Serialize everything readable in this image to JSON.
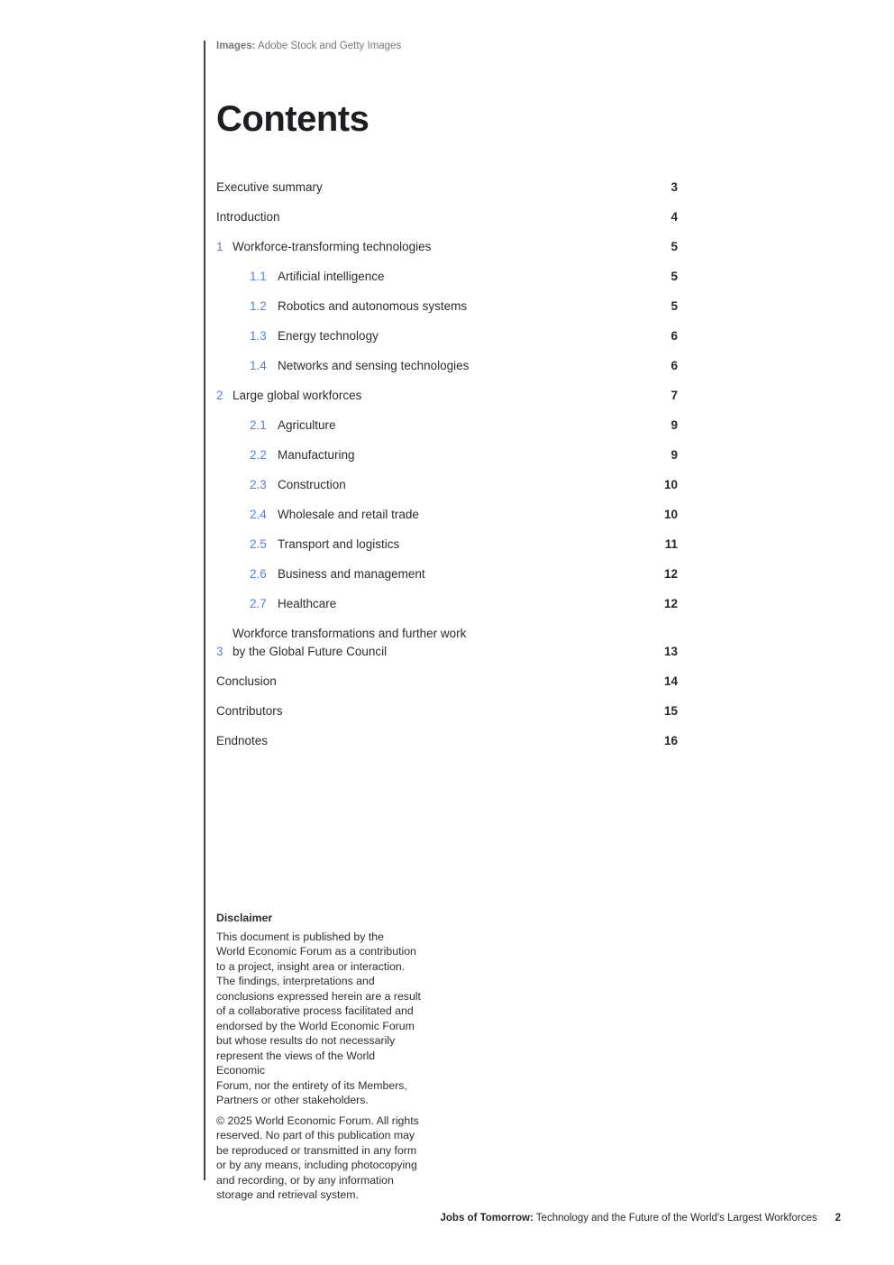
{
  "credits": {
    "label": "Images:",
    "text": "Adobe Stock and Getty Images"
  },
  "title": "Contents",
  "toc": {
    "entries": [
      {
        "level": 0,
        "number": "",
        "label": "Executive summary",
        "page": "3"
      },
      {
        "level": 0,
        "number": "",
        "label": "Introduction",
        "page": "4"
      },
      {
        "level": 1,
        "number": "1",
        "label": "Workforce-transforming technologies",
        "page": "5"
      },
      {
        "level": 2,
        "number": "1.1",
        "label": "Artificial intelligence",
        "page": "5"
      },
      {
        "level": 2,
        "number": "1.2",
        "label": "Robotics and autonomous systems",
        "page": "5"
      },
      {
        "level": 2,
        "number": "1.3",
        "label": "Energy technology",
        "page": "6"
      },
      {
        "level": 2,
        "number": "1.4",
        "label": "Networks and sensing technologies",
        "page": "6"
      },
      {
        "level": 1,
        "number": "2",
        "label": "Large global workforces",
        "page": "7"
      },
      {
        "level": 2,
        "number": "2.1",
        "label": "Agriculture",
        "page": "9"
      },
      {
        "level": 2,
        "number": "2.2",
        "label": "Manufacturing",
        "page": "9"
      },
      {
        "level": 2,
        "number": "2.3",
        "label": "Construction",
        "page": "10"
      },
      {
        "level": 2,
        "number": "2.4",
        "label": "Wholesale and retail trade",
        "page": "10"
      },
      {
        "level": 2,
        "number": "2.5",
        "label": "Transport and logistics",
        "page": "11"
      },
      {
        "level": 2,
        "number": "2.6",
        "label": "Business and management",
        "page": "12"
      },
      {
        "level": 2,
        "number": "2.7",
        "label": "Healthcare",
        "page": "12"
      },
      {
        "level": 1,
        "number": "3",
        "label": "Workforce transformations and further work\nby the Global Future Council",
        "page": "13"
      },
      {
        "level": 0,
        "number": "",
        "label": "Conclusion",
        "page": "14"
      },
      {
        "level": 0,
        "number": "",
        "label": "Contributors",
        "page": "15"
      },
      {
        "level": 0,
        "number": "",
        "label": "Endnotes",
        "page": "16"
      }
    ]
  },
  "disclaimer": {
    "heading": "Disclaimer",
    "paragraph1": "This document is published by the\nWorld Economic Forum as a contribution\nto a project, insight area or interaction.\nThe findings, interpretations and\nconclusions expressed herein are a result\nof a collaborative process facilitated and\nendorsed by the World Economic Forum\nbut whose results do not necessarily\nrepresent the views of the World Economic\nForum, nor the entirety of its Members,\nPartners or other stakeholders.",
    "paragraph2": "© 2025 World Economic Forum. All rights\nreserved. No part of this publication may\nbe reproduced or transmitted in any form\nor by any means, including photocopying\nand recording, or by any information\nstorage and retrieval system."
  },
  "footer": {
    "title_bold": "Jobs of Tomorrow:",
    "title_rest": "Technology and the Future of the World's Largest Workforces",
    "page_number": "2"
  },
  "colors": {
    "accent_blue": "#5582e2",
    "text": "#2b2d31",
    "muted": "#74787e",
    "rule": "#43434b"
  }
}
